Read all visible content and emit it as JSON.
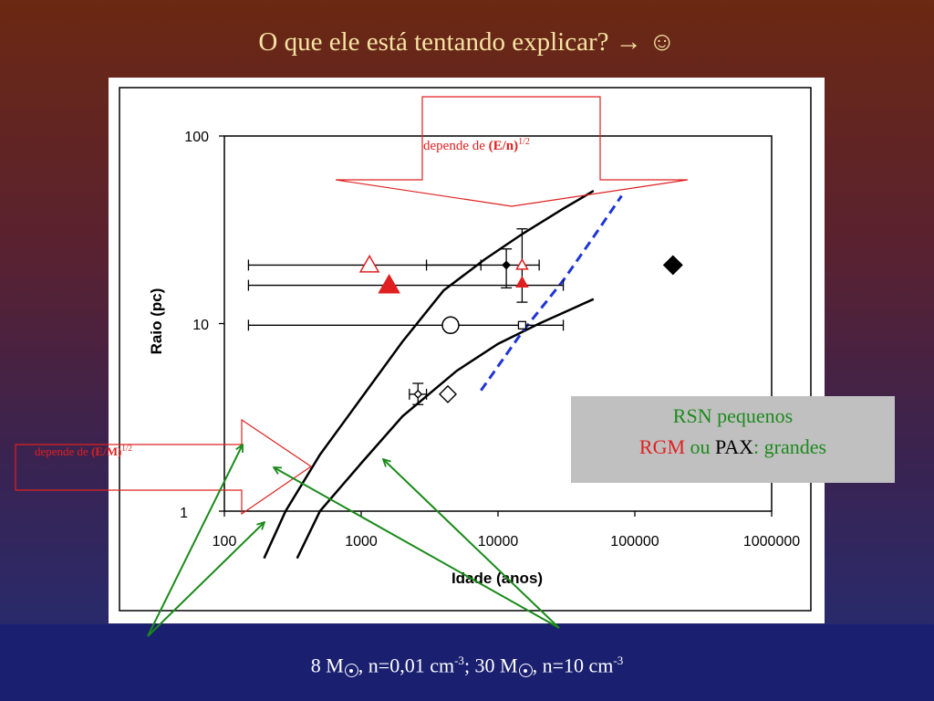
{
  "slide": {
    "title": "O que ele está tentando explicar? → ☺",
    "legend_box": {
      "line1": "RSN pequenos",
      "line2_red": "RGM",
      "line2_ou": " ou ",
      "line2_black": "PAX",
      "line2_colon": ":",
      "line2_green": " grandes"
    },
    "footer": {
      "p1": "8 M",
      "p2": ", n=0,01 cm",
      "sup1": "-3",
      "p3": "; 30 M",
      "p4": ", n=10 cm",
      "sup2": "-3"
    },
    "colors": {
      "title": "#f6e3a3",
      "annotation_red": "#e02020",
      "arrow_green": "#1a8a1a",
      "dashed_blue": "#1f34d6",
      "legend_green": "#1c8a1c"
    }
  },
  "annotations": {
    "top_arrow_pre": "depende de ",
    "top_arrow_bold": "(E/n)",
    "top_arrow_sup": "1/2",
    "left_arrow_pre": "depende de ",
    "left_arrow_bold": "(E/M)",
    "left_arrow_sup": "1/2"
  },
  "chart_data": {
    "type": "scatter",
    "xlabel": "Idade (anos)",
    "ylabel": "Raio (pc)",
    "xscale": "log",
    "yscale": "log",
    "xlim": [
      100,
      1000000
    ],
    "ylim": [
      1,
      100
    ],
    "xticks": [
      "100",
      "1000",
      "10000",
      "100000",
      "1000000"
    ],
    "yticks": [
      "1",
      "10",
      "100"
    ],
    "series": [
      {
        "type": "line",
        "color": "#000000",
        "x": [
          195,
          280,
          500,
          1000,
          2000,
          4000,
          8000,
          15000,
          30000,
          50000
        ],
        "y": [
          0.56,
          1.0,
          2.0,
          4.0,
          8.0,
          15.0,
          22.0,
          30.0,
          41.0,
          51.0
        ]
      },
      {
        "type": "line",
        "color": "#000000",
        "x": [
          340,
          500,
          1000,
          2000,
          5000,
          10000,
          20000,
          50000
        ],
        "y": [
          0.56,
          1.0,
          1.8,
          3.2,
          5.6,
          7.8,
          10.0,
          13.5
        ]
      },
      {
        "type": "dashed-line",
        "color": "#1f34d6",
        "x": [
          7500,
          15000,
          30000,
          50000,
          80000
        ],
        "y": [
          4.4,
          9.0,
          17.0,
          29.0,
          48.0
        ]
      },
      {
        "type": "points",
        "points": [
          {
            "marker": "triangle-open",
            "color": "#e02020",
            "x": 1150,
            "y": 20.5,
            "xerr": [
              150,
              7500
            ]
          },
          {
            "marker": "triangle-filled",
            "color": "#e02020",
            "x": 1600,
            "y": 16.0,
            "xerr": [
              150,
              30000
            ]
          },
          {
            "marker": "circle-open",
            "color": "#000000",
            "x": 4500,
            "y": 9.8,
            "xerr": [
              150,
              30000
            ]
          },
          {
            "marker": "diamond-open",
            "color": "#000000",
            "x": 4300,
            "y": 4.2
          },
          {
            "marker": "diamond-small",
            "color": "#000000",
            "x": 2600,
            "y": 4.2,
            "xerr": [
              2250,
              3000
            ],
            "yerr": [
              3.7,
              4.8
            ]
          },
          {
            "marker": "diamond-filled",
            "color": "#000000",
            "x": 11500,
            "y": 20.5,
            "xerr": [
              3000,
              20000
            ],
            "yerr": [
              15.5,
              25.0
            ]
          },
          {
            "marker": "triangle-small-open",
            "color": "#e02020",
            "x": 15000,
            "y": 20.5,
            "yerr": [
              13.0,
              32.0
            ]
          },
          {
            "marker": "triangle-small-filled",
            "color": "#e02020",
            "x": 15000,
            "y": 16.5
          },
          {
            "marker": "square-open",
            "color": "#000000",
            "x": 15000,
            "y": 9.8
          },
          {
            "marker": "diamond-filled",
            "color": "#000000",
            "x": 190000,
            "y": 20.5
          }
        ]
      }
    ]
  }
}
